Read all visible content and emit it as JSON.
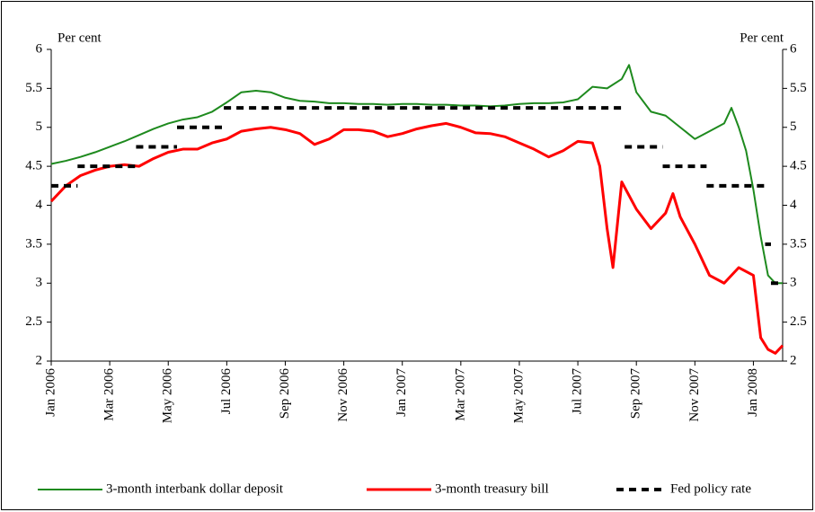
{
  "chart_data": {
    "type": "line",
    "ylabel": "Per cent",
    "y2label": "Per cent",
    "ylim": [
      2,
      6
    ],
    "yticks": [
      2,
      2.5,
      3,
      3.5,
      4,
      4.5,
      5,
      5.5,
      6
    ],
    "y2lim": [
      2,
      6
    ],
    "y2ticks": [
      2,
      2.5,
      3,
      3.5,
      4,
      4.5,
      5,
      5.5,
      6
    ],
    "xlim": [
      0,
      25
    ],
    "xticks": [
      {
        "value": 0,
        "label": "Jan 2006"
      },
      {
        "value": 2,
        "label": "Mar 2006"
      },
      {
        "value": 4,
        "label": "May 2006"
      },
      {
        "value": 6,
        "label": "Jul 2006"
      },
      {
        "value": 8,
        "label": "Sep 2006"
      },
      {
        "value": 10,
        "label": "Nov 2006"
      },
      {
        "value": 12,
        "label": "Jan 2007"
      },
      {
        "value": 14,
        "label": "Mar 2007"
      },
      {
        "value": 16,
        "label": "May 2007"
      },
      {
        "value": 18,
        "label": "Jul 2007"
      },
      {
        "value": 20,
        "label": "Sep 2007"
      },
      {
        "value": 22,
        "label": "Nov 2007"
      },
      {
        "value": 24,
        "label": "Jan 2008"
      }
    ],
    "legend": "bottom",
    "series": [
      {
        "name": "3-month interbank dollar deposit",
        "color": "#1e8a1e",
        "style": "solid",
        "x": [
          0,
          0.5,
          1,
          1.5,
          2,
          2.5,
          3,
          3.5,
          4,
          4.5,
          5,
          5.5,
          6,
          6.5,
          7,
          7.5,
          8,
          8.5,
          9,
          9.5,
          10,
          10.5,
          11,
          11.5,
          12,
          12.5,
          13,
          13.5,
          14,
          14.5,
          15,
          15.5,
          16,
          16.5,
          17,
          17.5,
          18,
          18.5,
          19,
          19.5,
          19.75,
          20,
          20.5,
          21,
          21.5,
          22,
          22.5,
          23,
          23.25,
          23.5,
          23.75,
          24,
          24.25,
          24.5,
          24.75,
          25
        ],
        "values": [
          4.53,
          4.57,
          4.62,
          4.68,
          4.75,
          4.82,
          4.9,
          4.98,
          5.05,
          5.1,
          5.13,
          5.2,
          5.32,
          5.45,
          5.47,
          5.45,
          5.38,
          5.34,
          5.33,
          5.31,
          5.31,
          5.3,
          5.3,
          5.29,
          5.3,
          5.3,
          5.29,
          5.29,
          5.28,
          5.28,
          5.27,
          5.28,
          5.3,
          5.31,
          5.31,
          5.32,
          5.36,
          5.52,
          5.5,
          5.62,
          5.8,
          5.45,
          5.2,
          5.15,
          5.0,
          4.85,
          4.95,
          5.05,
          5.25,
          5.0,
          4.7,
          4.2,
          3.6,
          3.1,
          3.0,
          3.0
        ]
      },
      {
        "name": "3-month treasury bill",
        "color": "#ff0000",
        "style": "solid",
        "x": [
          0,
          0.5,
          1,
          1.5,
          2,
          2.5,
          3,
          3.5,
          4,
          4.5,
          5,
          5.5,
          6,
          6.5,
          7,
          7.5,
          8,
          8.5,
          9,
          9.5,
          10,
          10.5,
          11,
          11.5,
          12,
          12.5,
          13,
          13.5,
          14,
          14.5,
          15,
          15.5,
          16,
          16.5,
          17,
          17.5,
          18,
          18.5,
          18.75,
          19,
          19.2,
          19.5,
          20,
          20.5,
          21,
          21.25,
          21.5,
          22,
          22.5,
          23,
          23.5,
          24,
          24.25,
          24.5,
          24.75,
          25
        ],
        "values": [
          4.05,
          4.25,
          4.38,
          4.45,
          4.5,
          4.52,
          4.5,
          4.6,
          4.68,
          4.72,
          4.72,
          4.8,
          4.85,
          4.95,
          4.98,
          5.0,
          4.97,
          4.92,
          4.78,
          4.85,
          4.97,
          4.97,
          4.95,
          4.88,
          4.92,
          4.98,
          5.02,
          5.05,
          5.0,
          4.93,
          4.92,
          4.88,
          4.8,
          4.72,
          4.62,
          4.7,
          4.82,
          4.8,
          4.5,
          3.7,
          3.2,
          4.3,
          3.95,
          3.7,
          3.9,
          4.15,
          3.85,
          3.5,
          3.1,
          3.0,
          3.2,
          3.1,
          2.3,
          2.15,
          2.1,
          2.2
        ]
      },
      {
        "name": "Fed policy rate",
        "color": "#000000",
        "style": "dashed-step",
        "x": [
          0,
          0.9,
          2.9,
          4.3,
          5.9,
          19.6,
          20.9,
          22.4,
          24.4,
          24.6
        ],
        "values": [
          4.25,
          4.5,
          4.75,
          5.0,
          5.25,
          4.75,
          4.5,
          4.25,
          3.5,
          3.0
        ]
      }
    ]
  }
}
